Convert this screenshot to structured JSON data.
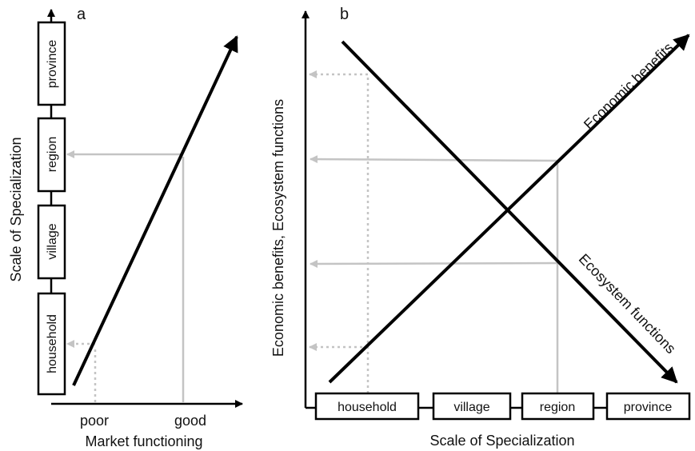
{
  "panel_a": {
    "letter": "a",
    "ylabel": "Scale of Specialization",
    "xlabel": "Market functioning",
    "scale_levels": [
      "household",
      "village",
      "region",
      "province"
    ],
    "x_ticks": [
      "poor",
      "good"
    ]
  },
  "panel_b": {
    "letter": "b",
    "ylabel": "Economic benefits, Ecosystem functions",
    "xlabel": "Scale of Specialization",
    "scale_levels": [
      "household",
      "village",
      "region",
      "province"
    ],
    "line_labels": {
      "economic": "Economic benefits",
      "ecosystem": "Ecosystem functions"
    }
  },
  "colors": {
    "line": "#000000",
    "guide": "#c4c4c4"
  }
}
